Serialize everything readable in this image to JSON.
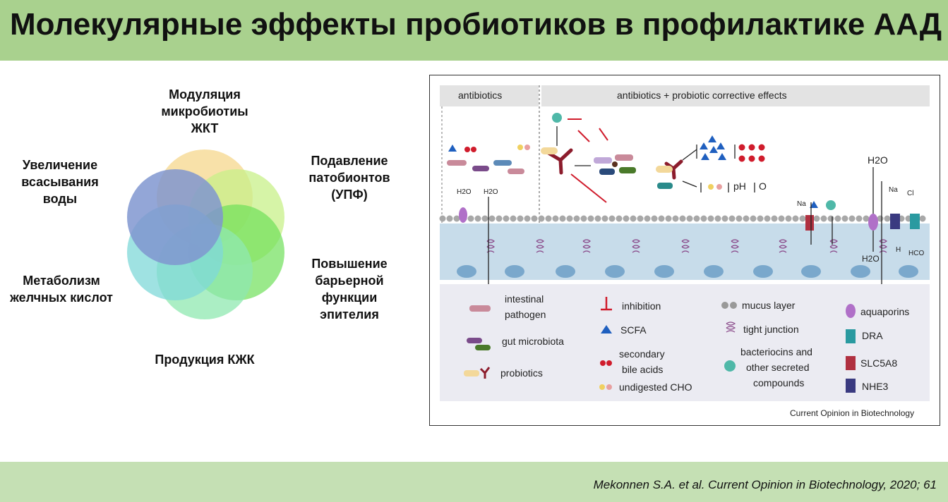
{
  "title": "Молекулярные эффекты пробиотиков в профилактике ААД",
  "venn": {
    "labels": {
      "modulation": [
        "Модуляция",
        "микробиотиы",
        "ЖКТ"
      ],
      "suppression": [
        "Подавление",
        "патобионтов",
        "(УПФ)"
      ],
      "barrier": [
        "Повышение",
        "барьерной",
        "функции",
        "эпителия"
      ],
      "scfa": [
        "Продукция КЖК"
      ],
      "bile": [
        "Метаболизм",
        "желчных кислот"
      ],
      "water": [
        "Увеличение",
        "всасывания",
        "воды"
      ]
    },
    "colors": [
      "#f5d78c",
      "#c8f08a",
      "#6fe05a",
      "#8fe8b0",
      "#7fd8d8",
      "#8096d0"
    ]
  },
  "figure": {
    "header_left": "antibiotics",
    "header_right": "antibiotics + probiotic corrective effects",
    "h2o": "H2O",
    "na": "Na",
    "cl": "Cl",
    "h": "H",
    "hco3": "HCO",
    "ph": "pH",
    "o2": "O",
    "legend": {
      "intestinal_pathogen": [
        "intestinal",
        "pathogen"
      ],
      "gut_microbiota": "gut microbiota",
      "probiotics": "probiotics",
      "inhibition": "inhibition",
      "scfa": "SCFA",
      "secondary_bile_acids": [
        "secondary",
        "bile acids"
      ],
      "undigested_cho": "undigested CHO",
      "mucus_layer": "mucus layer",
      "tight_junction": "tight junction",
      "bacteriocins": [
        "bacteriocins and",
        "other secreted",
        "compounds"
      ],
      "aquaporins": "aquaporins",
      "dra": "DRA",
      "slc5a8": "SLC5A8",
      "nhe3": "NHE3"
    },
    "credit": "Current Opinion in Biotechnology"
  },
  "footer": "Mekonnen S.A. et al. Current Opinion in Biotechnology, 2020; 61"
}
